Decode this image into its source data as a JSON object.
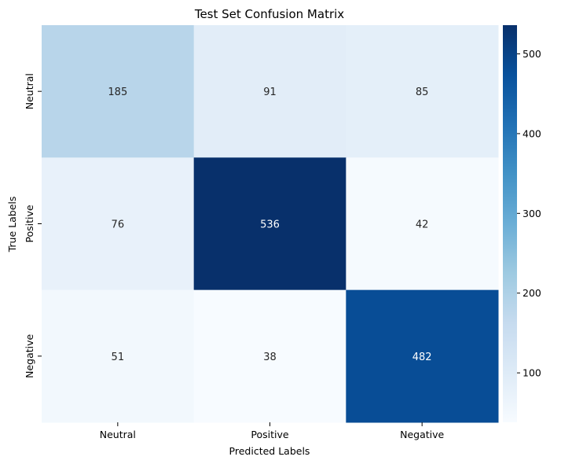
{
  "chart_data": {
    "type": "heatmap",
    "title": "Test Set Confusion Matrix",
    "xlabel": "Predicted Labels",
    "ylabel": "True Labels",
    "x_categories": [
      "Neutral",
      "Positive",
      "Negative"
    ],
    "y_categories": [
      "Neutral",
      "Positive",
      "Negative"
    ],
    "values": [
      [
        185,
        91,
        85
      ],
      [
        76,
        536,
        42
      ],
      [
        51,
        38,
        482
      ]
    ],
    "colormap": "Blues",
    "colorbar": {
      "range": [
        38,
        536
      ],
      "ticks": [
        100,
        200,
        300,
        400,
        500
      ],
      "tick_labels": [
        "100",
        "200",
        "300",
        "400",
        "500"
      ]
    }
  }
}
